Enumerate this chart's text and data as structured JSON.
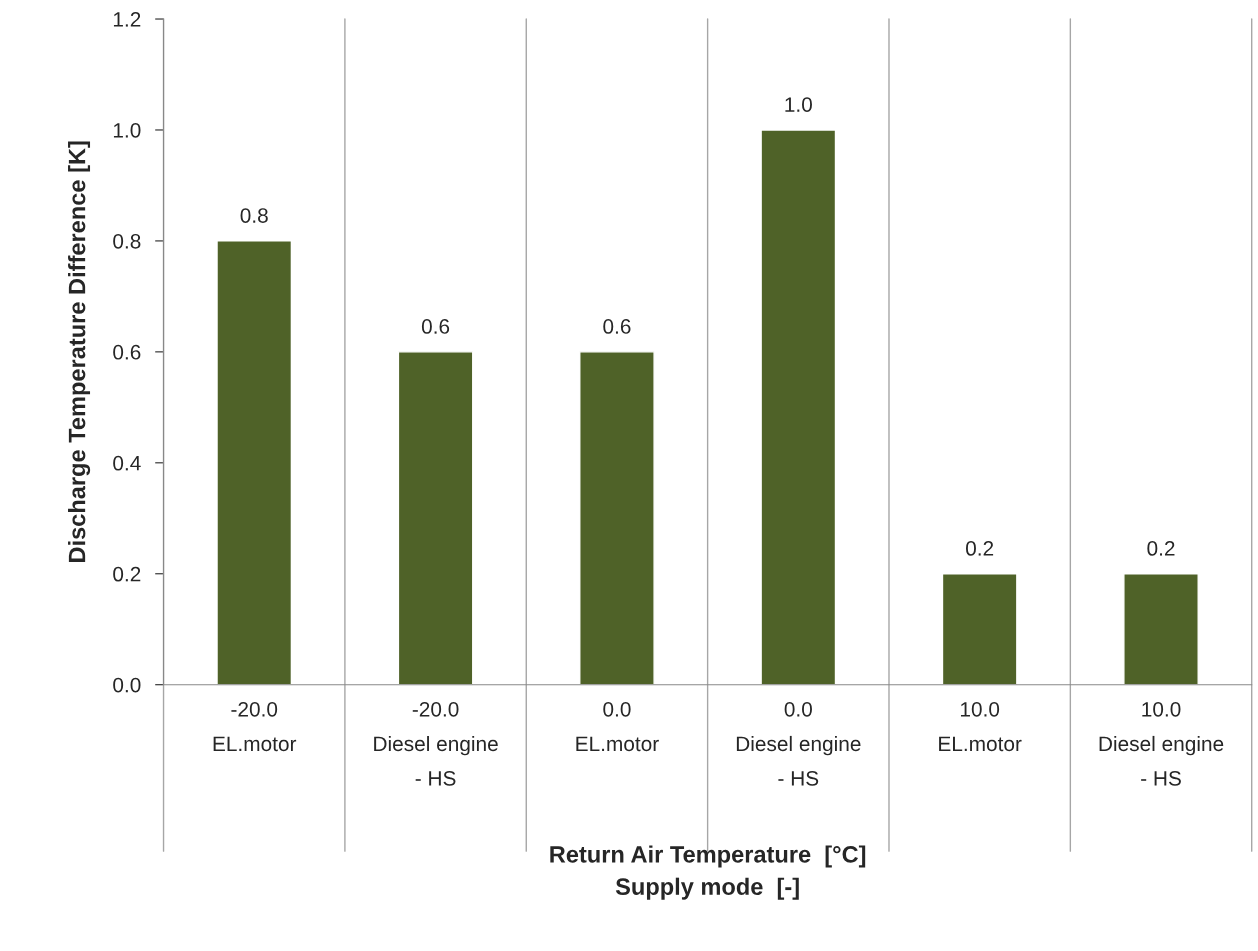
{
  "chart_data": {
    "type": "bar",
    "categories": [
      "-20.0\nEL.motor",
      "-20.0\nDiesel engine\n- HS",
      "0.0\nEL.motor",
      "0.0\nDiesel engine\n- HS",
      "10.0\nEL.motor",
      "10.0\nDiesel engine\n- HS"
    ],
    "values": [
      0.8,
      0.6,
      0.6,
      1.0,
      0.2,
      0.2
    ],
    "value_labels": [
      "0.8",
      "0.6",
      "0.6",
      "1.0",
      "0.2",
      "0.2"
    ],
    "color": "#4f6228",
    "xlabel": "Return Air Temperature  [°C]\nSupply mode  [-]",
    "ylabel": "Discharge Temperature Difference [K]",
    "ylim": [
      0,
      1.2
    ],
    "yticks": [
      {
        "value": 0,
        "label": "0.0"
      },
      {
        "value": 0.2,
        "label": "0.2"
      },
      {
        "value": 0.4,
        "label": "0.4"
      },
      {
        "value": 0.6,
        "label": "0.6"
      },
      {
        "value": 0.8,
        "label": "0.8"
      },
      {
        "value": 1.0,
        "label": "1.0"
      },
      {
        "value": 1.2,
        "label": "1.2"
      }
    ],
    "grid": "x"
  }
}
